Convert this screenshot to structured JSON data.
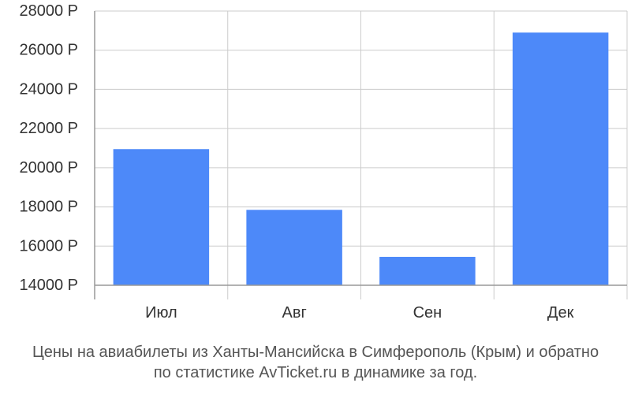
{
  "chart_data": {
    "type": "bar",
    "categories": [
      "Июл",
      "Авг",
      "Сен",
      "Дек"
    ],
    "values": [
      20950,
      17850,
      15450,
      26900
    ],
    "ylim": [
      14000,
      28000
    ],
    "yticks": [
      14000,
      16000,
      18000,
      20000,
      22000,
      24000,
      26000,
      28000
    ],
    "tick_suffix": " Р",
    "grid": true,
    "bar_color": "#4d89f9",
    "grid_color": "#cccccc",
    "axis_color": "#999999"
  },
  "caption": {
    "line1": "Цены на авиабилеты из Ханты-Мансийска в Симферополь (Крым) и обратно",
    "line2": "по статистике AvTicket.ru в динамике за год."
  }
}
